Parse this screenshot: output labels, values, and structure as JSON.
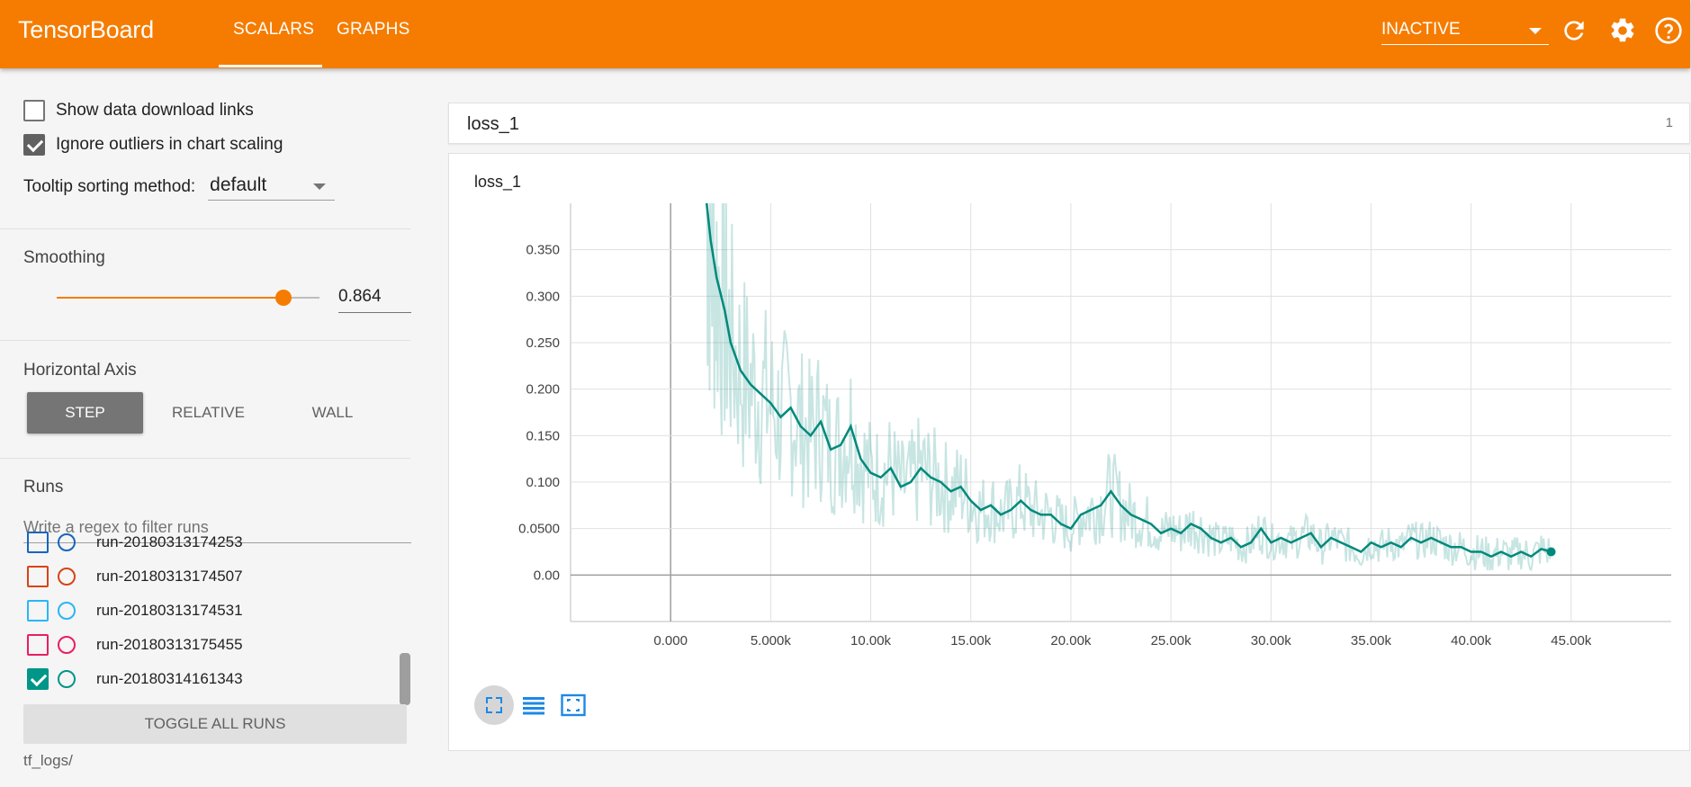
{
  "header": {
    "title": "TensorBoard",
    "tabs": [
      {
        "label": "SCALARS",
        "active": true
      },
      {
        "label": "GRAPHS",
        "active": false
      }
    ],
    "status": "INACTIVE",
    "icons": [
      "refresh-icon",
      "gear-icon",
      "help-icon"
    ]
  },
  "sidebar": {
    "show_download_links": {
      "label": "Show data download links",
      "checked": false
    },
    "ignore_outliers": {
      "label": "Ignore outliers in chart scaling",
      "checked": true
    },
    "tooltip_sorting": {
      "label": "Tooltip sorting method:",
      "value": "default"
    },
    "smoothing": {
      "title": "Smoothing",
      "value": "0.864",
      "fraction": 0.864
    },
    "horizontal_axis": {
      "title": "Horizontal Axis",
      "options": [
        "STEP",
        "RELATIVE",
        "WALL"
      ],
      "selected": "STEP"
    },
    "runs": {
      "title": "Runs",
      "filter_placeholder": "Write a regex to filter runs",
      "items": [
        {
          "name": "run-20180313174253",
          "color": "#1565c0",
          "checked": false
        },
        {
          "name": "run-20180313174507",
          "color": "#d84315",
          "checked": false
        },
        {
          "name": "run-20180313174531",
          "color": "#29b6f6",
          "checked": false
        },
        {
          "name": "run-20180313175455",
          "color": "#e91e63",
          "checked": false
        },
        {
          "name": "run-20180314161343",
          "color": "#009688",
          "checked": true
        }
      ],
      "toggle_label": "TOGGLE ALL RUNS",
      "logdir": "tf_logs/"
    }
  },
  "main": {
    "card_title": "loss_1",
    "card_count": "1"
  },
  "chart_data": {
    "type": "line",
    "title": "loss_1",
    "xlabel": "",
    "ylabel": "",
    "x_tick_labels": [
      "0.000",
      "5.000k",
      "10.00k",
      "15.00k",
      "20.00k",
      "25.00k",
      "30.00k",
      "35.00k",
      "40.00k",
      "45.00k"
    ],
    "x_ticks": [
      0,
      5000,
      10000,
      15000,
      20000,
      25000,
      30000,
      35000,
      40000,
      45000
    ],
    "y_tick_labels": [
      "0.00",
      "0.0500",
      "0.100",
      "0.150",
      "0.200",
      "0.250",
      "0.300",
      "0.350"
    ],
    "y_ticks": [
      0,
      0.05,
      0.1,
      0.15,
      0.2,
      0.25,
      0.3,
      0.35
    ],
    "xlim": [
      -5000,
      50000
    ],
    "ylim": [
      -0.05,
      0.4
    ],
    "grid": true,
    "series": [
      {
        "color": "#00897b",
        "smoothed": [
          [
            1800,
            0.4
          ],
          [
            2000,
            0.36
          ],
          [
            2300,
            0.32
          ],
          [
            2700,
            0.285
          ],
          [
            3000,
            0.25
          ],
          [
            3500,
            0.22
          ],
          [
            4000,
            0.205
          ],
          [
            4500,
            0.195
          ],
          [
            5000,
            0.185
          ],
          [
            5500,
            0.17
          ],
          [
            6000,
            0.18
          ],
          [
            6500,
            0.16
          ],
          [
            7000,
            0.15
          ],
          [
            7500,
            0.165
          ],
          [
            8000,
            0.135
          ],
          [
            8500,
            0.14
          ],
          [
            9000,
            0.16
          ],
          [
            9500,
            0.125
          ],
          [
            10000,
            0.11
          ],
          [
            10500,
            0.105
          ],
          [
            11000,
            0.115
          ],
          [
            11500,
            0.095
          ],
          [
            12000,
            0.1
          ],
          [
            12500,
            0.115
          ],
          [
            13000,
            0.105
          ],
          [
            13500,
            0.1
          ],
          [
            14000,
            0.09
          ],
          [
            14500,
            0.095
          ],
          [
            15000,
            0.08
          ],
          [
            15500,
            0.07
          ],
          [
            16000,
            0.075
          ],
          [
            16500,
            0.065
          ],
          [
            17000,
            0.07
          ],
          [
            17500,
            0.08
          ],
          [
            18000,
            0.07
          ],
          [
            18500,
            0.065
          ],
          [
            19000,
            0.065
          ],
          [
            19500,
            0.055
          ],
          [
            20000,
            0.05
          ],
          [
            20500,
            0.065
          ],
          [
            21000,
            0.07
          ],
          [
            21500,
            0.075
          ],
          [
            22000,
            0.09
          ],
          [
            22500,
            0.075
          ],
          [
            23000,
            0.065
          ],
          [
            23500,
            0.06
          ],
          [
            24000,
            0.055
          ],
          [
            24500,
            0.045
          ],
          [
            25000,
            0.05
          ],
          [
            25500,
            0.045
          ],
          [
            26000,
            0.055
          ],
          [
            26500,
            0.05
          ],
          [
            27000,
            0.04
          ],
          [
            27500,
            0.035
          ],
          [
            28000,
            0.04
          ],
          [
            28500,
            0.03
          ],
          [
            29000,
            0.035
          ],
          [
            29500,
            0.05
          ],
          [
            30000,
            0.035
          ],
          [
            30500,
            0.04
          ],
          [
            31000,
            0.035
          ],
          [
            31500,
            0.04
          ],
          [
            32000,
            0.045
          ],
          [
            32500,
            0.03
          ],
          [
            33000,
            0.04
          ],
          [
            33500,
            0.035
          ],
          [
            34000,
            0.03
          ],
          [
            34500,
            0.025
          ],
          [
            35000,
            0.035
          ],
          [
            35500,
            0.03
          ],
          [
            36000,
            0.035
          ],
          [
            36500,
            0.03
          ],
          [
            37000,
            0.04
          ],
          [
            37500,
            0.035
          ],
          [
            38000,
            0.04
          ],
          [
            38500,
            0.035
          ],
          [
            39000,
            0.03
          ],
          [
            39500,
            0.03
          ],
          [
            40000,
            0.025
          ],
          [
            40500,
            0.025
          ],
          [
            41000,
            0.02
          ],
          [
            41500,
            0.025
          ],
          [
            42000,
            0.02
          ],
          [
            42500,
            0.025
          ],
          [
            43000,
            0.02
          ],
          [
            43500,
            0.028
          ],
          [
            44000,
            0.025
          ]
        ]
      }
    ]
  }
}
